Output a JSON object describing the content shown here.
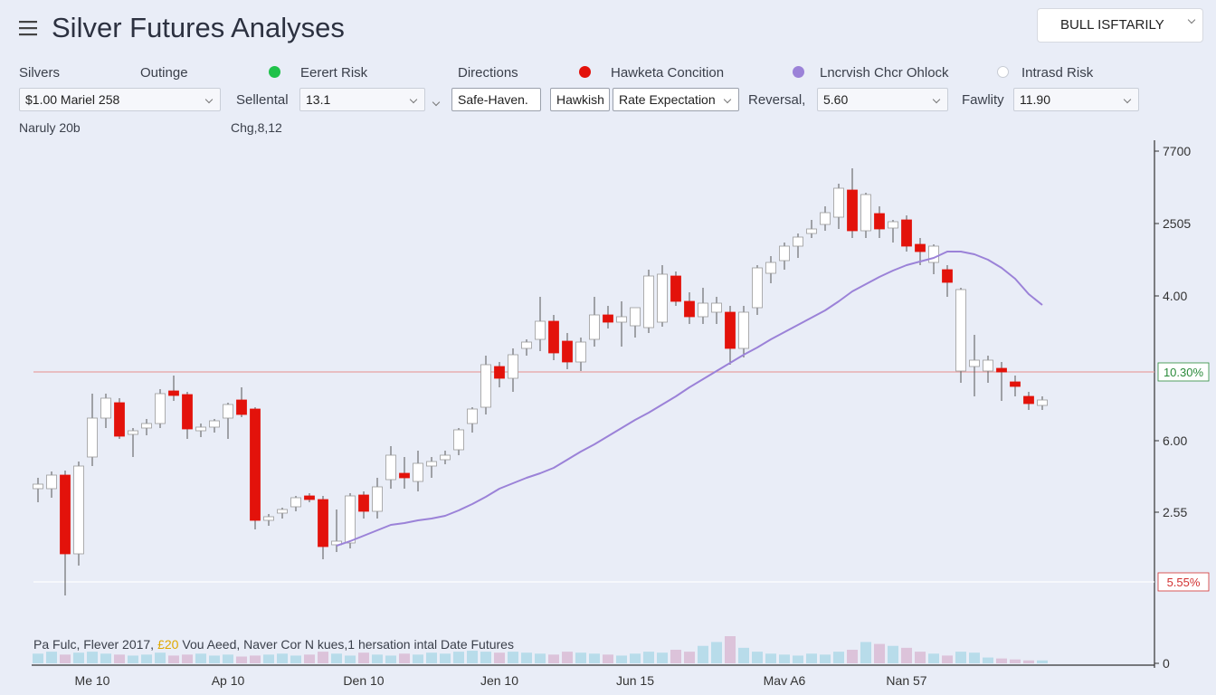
{
  "header": {
    "title": "Silver Futures Analyses",
    "button": "BULL ISFTARILY"
  },
  "toolbar": {
    "labels": [
      "Silvers",
      "Outinge",
      "Directions"
    ],
    "indicators": [
      {
        "label": "Eerert Risk",
        "color": "#1fc24a"
      },
      {
        "label": "Hawketa Concition",
        "color": "#e3120b"
      },
      {
        "label": "Lncrvish Chcr Ohlock",
        "color": "#9b82d8"
      },
      {
        "label": "Intrasd Risk",
        "color": "#ffffff"
      }
    ],
    "selects": [
      "$1.00 Mariel 258",
      "13.1",
      "Rate Expectation",
      "5.60",
      "11.90"
    ],
    "field_labels": [
      "Sellental",
      "Reversal,",
      "Fawlity"
    ],
    "buttons": [
      "Safe-Haven.",
      "Hawkish"
    ],
    "notes": [
      "Naruly 20b",
      "Chg,8,12"
    ]
  },
  "chart_data": {
    "type": "candlestick",
    "categories": [
      null,
      null,
      null,
      null,
      "Me 10",
      null,
      null,
      null,
      null,
      null,
      null,
      null,
      null,
      null,
      "Ap 10",
      null,
      null,
      null,
      null,
      null,
      null,
      null,
      null,
      null,
      "Den 10",
      null,
      null,
      null,
      null,
      null,
      null,
      null,
      null,
      null,
      "Jen 10",
      null,
      null,
      null,
      null,
      null,
      null,
      null,
      null,
      null,
      "Jun 15",
      null,
      null,
      null,
      null,
      null,
      null,
      null,
      null,
      null,
      null,
      "Mav A6",
      null,
      null,
      null,
      null,
      null,
      null,
      null,
      null,
      "Nan 57",
      null,
      null,
      null,
      null,
      null,
      null,
      null,
      null,
      null,
      null
    ],
    "open": [
      193,
      193,
      208,
      121,
      228,
      271,
      288,
      253,
      260,
      265,
      301,
      297,
      257,
      261,
      271,
      291,
      281,
      158,
      166,
      173,
      185,
      181,
      131,
      133,
      186,
      168,
      203,
      210,
      201,
      218,
      225,
      236,
      265,
      283,
      328,
      315,
      348,
      358,
      378,
      356,
      333,
      358,
      385,
      377,
      373,
      371,
      377,
      428,
      400,
      383,
      388,
      388,
      348,
      393,
      431,
      445,
      461,
      475,
      485,
      493,
      523,
      478,
      497,
      481,
      490,
      463,
      443,
      435,
      323,
      328,
      323,
      326,
      311,
      295,
      285
    ],
    "high": [
      205,
      212,
      213,
      223,
      298,
      298,
      293,
      260,
      270,
      303,
      318,
      300,
      265,
      270,
      288,
      305,
      283,
      165,
      172,
      185,
      188,
      185,
      170,
      188,
      190,
      205,
      240,
      228,
      235,
      228,
      235,
      260,
      283,
      340,
      333,
      348,
      358,
      405,
      385,
      365,
      360,
      405,
      395,
      400,
      393,
      435,
      440,
      433,
      410,
      415,
      405,
      395,
      395,
      440,
      450,
      465,
      475,
      490,
      505,
      530,
      547,
      520,
      505,
      490,
      495,
      470,
      463,
      440,
      415,
      363,
      340,
      333,
      318,
      300,
      295
    ],
    "low": [
      178,
      183,
      75,
      108,
      218,
      260,
      248,
      228,
      252,
      260,
      290,
      248,
      250,
      255,
      248,
      272,
      148,
      152,
      160,
      168,
      178,
      115,
      123,
      127,
      160,
      160,
      193,
      193,
      190,
      205,
      220,
      230,
      255,
      275,
      305,
      300,
      340,
      345,
      335,
      325,
      323,
      350,
      370,
      350,
      360,
      365,
      372,
      395,
      375,
      375,
      375,
      330,
      338,
      385,
      420,
      435,
      448,
      470,
      478,
      480,
      470,
      470,
      470,
      465,
      455,
      440,
      430,
      405,
      310,
      295,
      310,
      290,
      295,
      280,
      280
    ],
    "close": [
      198,
      208,
      121,
      218,
      271,
      293,
      251,
      257,
      265,
      298,
      296,
      259,
      261,
      268,
      286,
      275,
      158,
      162,
      170,
      183,
      181,
      129,
      135,
      185,
      168,
      195,
      230,
      205,
      221,
      223,
      230,
      258,
      281,
      330,
      315,
      341,
      355,
      378,
      343,
      333,
      355,
      385,
      377,
      383,
      393,
      428,
      430,
      400,
      383,
      398,
      398,
      348,
      388,
      437,
      443,
      461,
      471,
      480,
      498,
      525,
      478,
      518,
      480,
      488,
      461,
      455,
      461,
      421,
      413,
      335,
      335,
      322,
      306,
      287,
      291
    ],
    "up_color": "#ffffff",
    "down_color": "#e3120b",
    "volume": [
      10,
      12,
      9,
      11,
      12,
      10,
      9,
      8,
      9,
      11,
      8,
      9,
      10,
      8,
      9,
      7,
      8,
      9,
      10,
      8,
      9,
      12,
      10,
      8,
      11,
      9,
      8,
      10,
      9,
      11,
      10,
      12,
      13,
      12,
      11,
      12,
      11,
      10,
      9,
      12,
      11,
      10,
      9,
      8,
      10,
      12,
      11,
      14,
      12,
      18,
      22,
      28,
      16,
      12,
      10,
      9,
      8,
      10,
      9,
      12,
      14,
      22,
      20,
      18,
      16,
      12,
      10,
      8,
      12,
      11,
      6,
      5,
      4,
      3,
      3
    ],
    "volume_up_color": "#b8dcea",
    "volume_down_color": "#dcc3da",
    "line": {
      "color": "#9b82d8",
      "values": [
        null,
        null,
        null,
        null,
        null,
        null,
        null,
        null,
        null,
        null,
        null,
        null,
        null,
        null,
        null,
        null,
        null,
        null,
        null,
        null,
        null,
        null,
        130,
        135,
        141,
        147,
        153,
        155,
        158,
        160,
        163,
        169,
        176,
        184,
        193,
        199,
        205,
        210,
        216,
        225,
        234,
        242,
        251,
        260,
        269,
        277,
        286,
        295,
        305,
        314,
        323,
        332,
        341,
        349,
        358,
        366,
        374,
        382,
        390,
        400,
        411,
        419,
        427,
        434,
        440,
        444,
        448,
        455,
        455,
        452,
        446,
        437,
        425,
        408,
        396
      ]
    },
    "reference_lines": [
      {
        "value": 322,
        "label": "10.30%",
        "color": "#e8a3a3",
        "label_color": "#2a8a3a"
      },
      {
        "value": 90,
        "label": "5.55%",
        "color": "#ffffff",
        "label_color": "#d23030"
      }
    ],
    "ylim": [
      0,
      583
    ],
    "yticks": [
      {
        "value": 566,
        "label": "7700"
      },
      {
        "value": 486,
        "label": "2505"
      },
      {
        "value": 406,
        "label": "4.00"
      },
      {
        "value": 246,
        "label": "6.00"
      },
      {
        "value": 167,
        "label": "2.55"
      },
      0
    ],
    "caption": [
      "Pa Fulc, Flever 2017,",
      "£20",
      "Vou Aeed, Naver Cor N kues,1 hersation intal Date Futures"
    ]
  }
}
